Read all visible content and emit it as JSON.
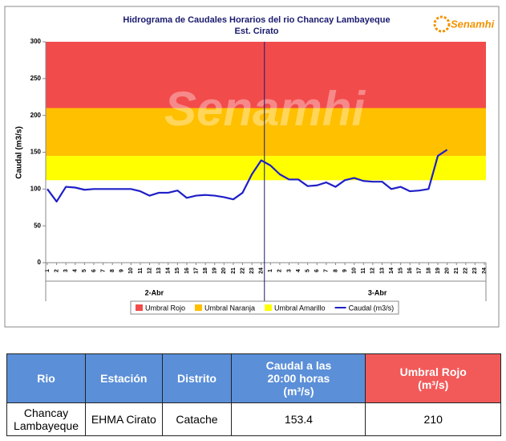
{
  "chart_data": {
    "type": "line",
    "title": "Hidrograma de Caudales Horarios del rio Chancay Lambayeque",
    "subtitle": "Est. Cirato",
    "y_label": "Caudal  (m3/s)",
    "x": [
      "1",
      "2",
      "3",
      "4",
      "5",
      "6",
      "7",
      "8",
      "9",
      "10",
      "11",
      "12",
      "13",
      "14",
      "15",
      "16",
      "17",
      "18",
      "19",
      "20",
      "21",
      "22",
      "23",
      "24",
      "1",
      "2",
      "3",
      "4",
      "5",
      "6",
      "7",
      "8",
      "9",
      "10",
      "11",
      "12",
      "13",
      "14",
      "15",
      "16",
      "17",
      "18",
      "19",
      "20",
      "21",
      "22",
      "23",
      "24"
    ],
    "groups": [
      "2-Abr",
      "3-Abr"
    ],
    "series": [
      {
        "name": "Caudal (m3/s)",
        "color": "#1f1fc8",
        "values": [
          100,
          83,
          103,
          102,
          99,
          100,
          100,
          100,
          100,
          100,
          97,
          91,
          95,
          95,
          98,
          88,
          91,
          92,
          91,
          89,
          86,
          95,
          120,
          139,
          132,
          120,
          113,
          113,
          104,
          105,
          109,
          103,
          112,
          115,
          111,
          110,
          110,
          100,
          103,
          97,
          98,
          100,
          145,
          153.4,
          null,
          null,
          null,
          null
        ]
      }
    ],
    "thresholds": [
      {
        "name": "Umbral Rojo",
        "color": "#f24b4b",
        "value": 210
      },
      {
        "name": "Umbral Naranja",
        "color": "#ffc000",
        "value": 145
      },
      {
        "name": "Umbral Amarillo",
        "color": "#ffff00",
        "value": 112
      }
    ],
    "ylim": [
      0,
      300
    ],
    "yticks": [
      0,
      50,
      100,
      150,
      200,
      250,
      300
    ]
  },
  "logo": "Senamhi",
  "table": {
    "columns": [
      "Rio",
      "Estación",
      "Distrito",
      "Caudal a las 20:00 horas (m³/s)",
      "Umbral Rojo (m³/s)"
    ],
    "rows": [
      [
        "Chancay Lambayeque",
        "EHMA Cirato",
        "Catache",
        153.4,
        210
      ]
    ]
  }
}
